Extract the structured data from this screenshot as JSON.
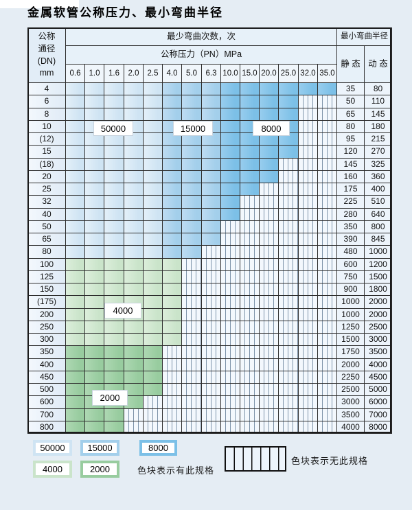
{
  "title": "金属软管公称压力、最小弯曲半径",
  "table": {
    "header": {
      "dn_lines": [
        "公称",
        "通径",
        "(DN)",
        "mm"
      ],
      "bend_count_title": "最少弯曲次数，次",
      "pressure_title": "公称压力（PN）MPa",
      "pressure_columns": [
        "0.6",
        "1.0",
        "1.6",
        "2.0",
        "2.5",
        "4.0",
        "5.0",
        "6.3",
        "10.0",
        "15.0",
        "20.0",
        "25.0",
        "32.0",
        "35.0"
      ],
      "radius_title": "最小弯曲半径",
      "static_label": "静 态",
      "dynamic_label": "动 态"
    },
    "color_zones": {
      "blue": [
        {
          "label": "50000",
          "from_col": 0,
          "to_col": 4,
          "color": "#cfe4f3",
          "light": "#e4f0f9"
        },
        {
          "label": "15000",
          "from_col": 5,
          "to_col": 7,
          "color": "#a3cfeb",
          "light": "#bedcf2"
        },
        {
          "label": "8000",
          "from_col": 8,
          "to_col": 13,
          "color": "#7cc0e7",
          "light": "#98cdee"
        }
      ],
      "green": [
        {
          "label": "4000",
          "color": "#cae4ca",
          "light": "#dceedb"
        },
        {
          "label": "2000",
          "color": "#98cc9f",
          "light": "#aed8b3"
        }
      ]
    },
    "rows": [
      {
        "dn": "4",
        "colored_cols": 14,
        "scheme": "blue",
        "static": "35",
        "dynamic": "80"
      },
      {
        "dn": "6",
        "colored_cols": 12,
        "scheme": "blue",
        "static": "50",
        "dynamic": "110"
      },
      {
        "dn": "8",
        "colored_cols": 12,
        "scheme": "blue",
        "static": "65",
        "dynamic": "145"
      },
      {
        "dn": "10",
        "colored_cols": 12,
        "scheme": "blue",
        "static": "80",
        "dynamic": "180"
      },
      {
        "dn": "(12)",
        "colored_cols": 12,
        "scheme": "blue",
        "static": "95",
        "dynamic": "215"
      },
      {
        "dn": "15",
        "colored_cols": 12,
        "scheme": "blue",
        "static": "120",
        "dynamic": "270"
      },
      {
        "dn": "(18)",
        "colored_cols": 11,
        "scheme": "blue",
        "static": "145",
        "dynamic": "325"
      },
      {
        "dn": "20",
        "colored_cols": 11,
        "scheme": "blue",
        "static": "160",
        "dynamic": "360"
      },
      {
        "dn": "25",
        "colored_cols": 10,
        "scheme": "blue",
        "static": "175",
        "dynamic": "400"
      },
      {
        "dn": "32",
        "colored_cols": 9,
        "scheme": "blue",
        "static": "225",
        "dynamic": "510"
      },
      {
        "dn": "40",
        "colored_cols": 9,
        "scheme": "blue",
        "static": "280",
        "dynamic": "640"
      },
      {
        "dn": "50",
        "colored_cols": 8,
        "scheme": "blue",
        "static": "350",
        "dynamic": "800"
      },
      {
        "dn": "65",
        "colored_cols": 8,
        "scheme": "blue",
        "static": "390",
        "dynamic": "845"
      },
      {
        "dn": "80",
        "colored_cols": 7,
        "scheme": "blue",
        "static": "480",
        "dynamic": "1000"
      },
      {
        "dn": "100",
        "colored_cols": 6,
        "scheme": "green-4000",
        "static": "600",
        "dynamic": "1200"
      },
      {
        "dn": "125",
        "colored_cols": 6,
        "scheme": "green-4000",
        "static": "750",
        "dynamic": "1500"
      },
      {
        "dn": "150",
        "colored_cols": 6,
        "scheme": "green-4000",
        "static": "900",
        "dynamic": "1800"
      },
      {
        "dn": "(175)",
        "colored_cols": 6,
        "scheme": "green-4000",
        "static": "1000",
        "dynamic": "2000"
      },
      {
        "dn": "200",
        "colored_cols": 6,
        "scheme": "green-4000",
        "static": "1000",
        "dynamic": "2000"
      },
      {
        "dn": "250",
        "colored_cols": 6,
        "scheme": "green-4000",
        "static": "1250",
        "dynamic": "2500"
      },
      {
        "dn": "300",
        "colored_cols": 6,
        "scheme": "green-4000",
        "static": "1500",
        "dynamic": "3000"
      },
      {
        "dn": "350",
        "colored_cols": 5,
        "scheme": "green-2000",
        "static": "1750",
        "dynamic": "3500"
      },
      {
        "dn": "400",
        "colored_cols": 5,
        "scheme": "green-2000",
        "static": "2000",
        "dynamic": "4000"
      },
      {
        "dn": "450",
        "colored_cols": 5,
        "scheme": "green-2000",
        "static": "2250",
        "dynamic": "4500"
      },
      {
        "dn": "500",
        "colored_cols": 5,
        "scheme": "green-2000",
        "static": "2500",
        "dynamic": "5000"
      },
      {
        "dn": "600",
        "colored_cols": 4,
        "scheme": "green-2000",
        "static": "3000",
        "dynamic": "6000"
      },
      {
        "dn": "700",
        "colored_cols": 3,
        "scheme": "green-2000",
        "static": "3500",
        "dynamic": "7000"
      },
      {
        "dn": "800",
        "colored_cols": 3,
        "scheme": "green-2000",
        "static": "4000",
        "dynamic": "8000"
      }
    ],
    "zone_labels": [
      "50000",
      "15000",
      "8000",
      "4000",
      "2000"
    ]
  },
  "legend": {
    "chips": [
      "50000",
      "15000",
      "8000",
      "4000",
      "2000"
    ],
    "has_spec_text": "色块表示有此规格",
    "no_spec_text": "色块表示无此规格"
  }
}
